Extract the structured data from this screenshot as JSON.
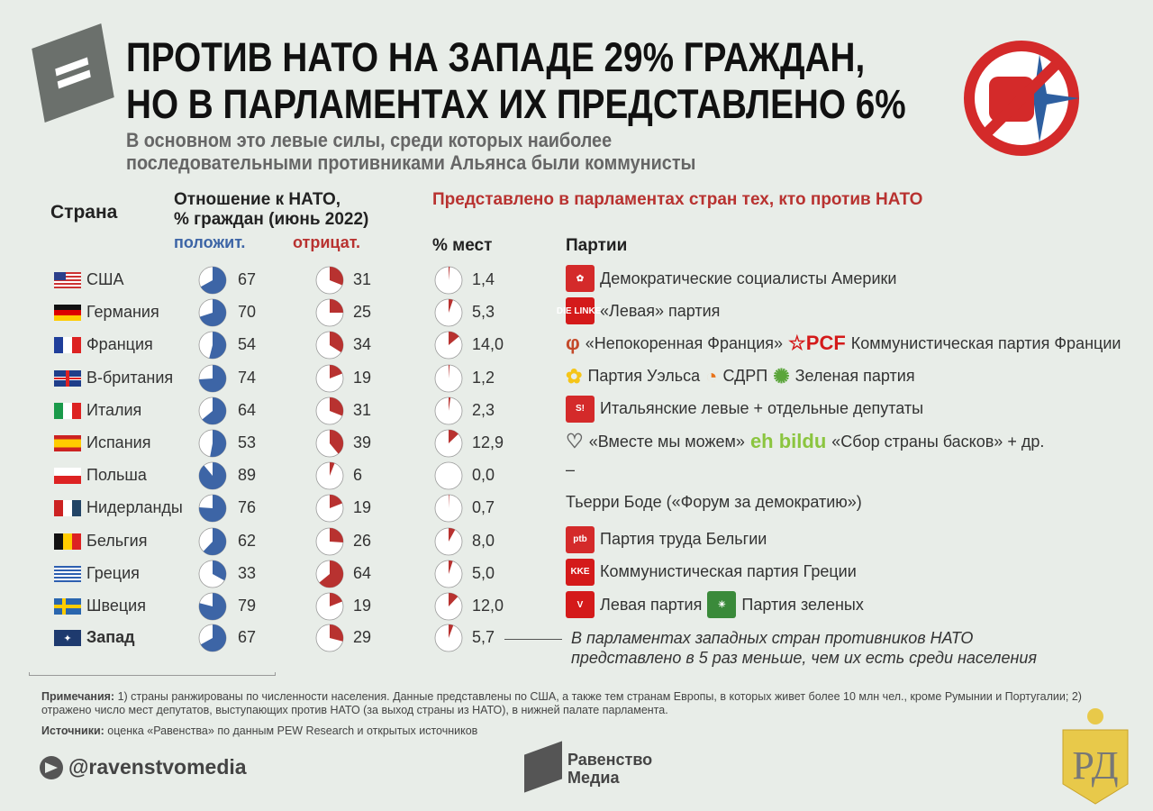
{
  "title_lines": [
    "ПРОТИВ НАТО НА ЗАПАДЕ 29% ГРАЖДАН,",
    "НО В ПАРЛАМЕНТАХ ИХ ПРЕДСТАВЛЕНО 6%"
  ],
  "subtitle_lines": [
    "В основном это левые силы, среди которых наиболее",
    "последовательными противниками Альянса были коммунисты"
  ],
  "headers": {
    "country": "Страна",
    "attitude_1": "Отношение к НАТО,",
    "attitude_2": "% граждан (июнь 2022)",
    "positive": "положит.",
    "negative": "отрицат.",
    "represented": "Представлено в парламентах стран тех, кто против НАТО",
    "seats": "% мест",
    "parties": "Партии"
  },
  "colors": {
    "positive": "#3d65a6",
    "negative": "#b83230",
    "background": "#e8ede8"
  },
  "chart_data": {
    "type": "table",
    "columns": [
      "Страна",
      "положит.",
      "отрицат.",
      "% мест",
      "Партии"
    ],
    "rows": [
      {
        "country": "США",
        "flag": "us",
        "positive": 67,
        "negative": 31,
        "seats": "1,4",
        "seats_value": 1.4,
        "parties": [
          {
            "logo": "dsa-rose",
            "text": "Демократические социалисты Америки"
          }
        ]
      },
      {
        "country": "Германия",
        "flag": "de",
        "positive": 70,
        "negative": 25,
        "seats": "5,3",
        "seats_value": 5.3,
        "parties": [
          {
            "logo": "DIE LINKE.",
            "text": "«Левая» партия"
          }
        ]
      },
      {
        "country": "Франция",
        "flag": "fr",
        "positive": 54,
        "negative": 34,
        "seats": "14,0",
        "seats_value": 14.0,
        "parties": [
          {
            "logo": "phi",
            "text": "«Непокоренная Франция»"
          },
          {
            "logo": "PCF",
            "text": "Коммунистическая партия Франции"
          }
        ]
      },
      {
        "country": "В-британия",
        "flag": "gb",
        "positive": 74,
        "negative": 19,
        "seats": "1,2",
        "seats_value": 1.2,
        "parties": [
          {
            "logo": "daffodil",
            "text": "Партия Уэльса"
          },
          {
            "logo": "sdlp",
            "text": "СДРП"
          },
          {
            "logo": "green-globe",
            "text": "Зеленая партия"
          }
        ]
      },
      {
        "country": "Италия",
        "flag": "it",
        "positive": 64,
        "negative": 31,
        "seats": "2,3",
        "seats_value": 2.3,
        "parties": [
          {
            "logo": "SI",
            "text": "Итальянские левые + отдельные депутаты"
          }
        ]
      },
      {
        "country": "Испания",
        "flag": "es",
        "positive": 53,
        "negative": 39,
        "seats": "12,9",
        "seats_value": 12.9,
        "parties": [
          {
            "logo": "heart",
            "text": "«Вместе мы можем»"
          },
          {
            "logo": "eh bildu",
            "text": "«Сбор страны басков» + др."
          }
        ]
      },
      {
        "country": "Польша",
        "flag": "pl",
        "positive": 89,
        "negative": 6,
        "seats": "0,0",
        "seats_value": 0.0,
        "parties": [
          {
            "logo": "",
            "text": "–"
          }
        ]
      },
      {
        "country": "Нидерланды",
        "flag": "nl",
        "positive": 76,
        "negative": 19,
        "seats": "0,7",
        "seats_value": 0.7,
        "parties": [
          {
            "logo": "",
            "text": "Тьерри Боде («Форум за демократию»)"
          }
        ]
      },
      {
        "country": "Бельгия",
        "flag": "be",
        "positive": 62,
        "negative": 26,
        "seats": "8,0",
        "seats_value": 8.0,
        "parties": [
          {
            "logo": "ptb",
            "text": "Партия труда Бельгии"
          }
        ]
      },
      {
        "country": "Греция",
        "flag": "gr",
        "positive": 33,
        "negative": 64,
        "seats": "5,0",
        "seats_value": 5.0,
        "parties": [
          {
            "logo": "KKE",
            "text": "Коммунистическая партия Греции"
          }
        ]
      },
      {
        "country": "Швеция",
        "flag": "se",
        "positive": 79,
        "negative": 19,
        "seats": "12,0",
        "seats_value": 12.0,
        "parties": [
          {
            "logo": "V",
            "text": "Левая партия"
          },
          {
            "logo": "sun",
            "text": "Партия зеленых"
          }
        ]
      },
      {
        "country": "Запад",
        "flag": "nato",
        "positive": 67,
        "negative": 29,
        "seats": "5,7",
        "seats_value": 5.7,
        "bold": true,
        "parties": []
      }
    ]
  },
  "annotation_lines": [
    "В парламентах западных стран противников НАТО",
    "представлено в 5 раз меньше, чем их есть среди населения"
  ],
  "notes_label": "Примечания:",
  "notes_text": " 1) страны ранжированы по численности населения. Данные представлены по США, а также тем странам Европы, в которых живет более 10 млн чел., кроме Румынии и Португалии; 2) отражено число мест депутатов, выступающих против НАТО (за выход страны из НАТО), в нижней палате парламента.",
  "sources_label": "Источники:",
  "sources_text": " оценка «Равенства» по данным PEW Research и открытых источников",
  "telegram": "@ravenstvomedia",
  "brand_lines": [
    "Равенство",
    "Медиа"
  ]
}
